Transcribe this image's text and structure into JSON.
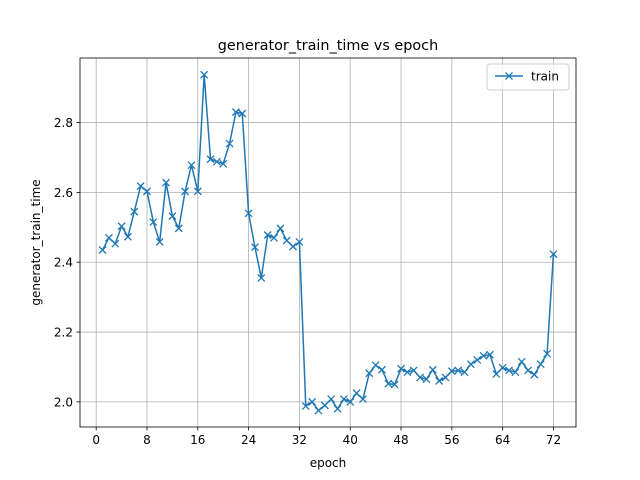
{
  "chart_data": {
    "type": "line",
    "title": "generator_train_time vs epoch",
    "xlabel": "epoch",
    "ylabel": "generator_train_time",
    "xlim": [
      -2.55,
      75.55
    ],
    "ylim": [
      1.928,
      2.985
    ],
    "xticks": [
      0,
      8,
      16,
      24,
      32,
      40,
      48,
      56,
      64,
      72
    ],
    "yticks": [
      2.0,
      2.2,
      2.4,
      2.6,
      2.8
    ],
    "ytick_labels": [
      "2.0",
      "2.2",
      "2.4",
      "2.6",
      "2.8"
    ],
    "grid": true,
    "legend_position": "top-right",
    "series": [
      {
        "name": "train",
        "color": "#1f77b4",
        "marker": "x",
        "x": [
          1,
          2,
          3,
          4,
          5,
          6,
          7,
          8,
          9,
          10,
          11,
          12,
          13,
          14,
          15,
          16,
          17,
          18,
          19,
          20,
          21,
          22,
          23,
          24,
          25,
          26,
          27,
          28,
          29,
          30,
          31,
          32,
          33,
          34,
          35,
          36,
          37,
          38,
          39,
          40,
          41,
          42,
          43,
          44,
          45,
          46,
          47,
          48,
          49,
          50,
          51,
          52,
          53,
          54,
          55,
          56,
          57,
          58,
          59,
          60,
          61,
          62,
          63,
          64,
          65,
          66,
          67,
          68,
          69,
          70,
          71,
          72
        ],
        "y": [
          2.435,
          2.47,
          2.453,
          2.503,
          2.473,
          2.545,
          2.618,
          2.603,
          2.515,
          2.458,
          2.628,
          2.532,
          2.497,
          2.603,
          2.678,
          2.603,
          2.937,
          2.695,
          2.688,
          2.682,
          2.74,
          2.83,
          2.826,
          2.54,
          2.443,
          2.355,
          2.478,
          2.47,
          2.497,
          2.462,
          2.445,
          2.458,
          1.988,
          2.0,
          1.975,
          1.99,
          2.008,
          1.98,
          2.008,
          2.0,
          2.025,
          2.008,
          2.082,
          2.105,
          2.092,
          2.052,
          2.05,
          2.095,
          2.085,
          2.09,
          2.07,
          2.065,
          2.092,
          2.06,
          2.07,
          2.088,
          2.09,
          2.085,
          2.108,
          2.12,
          2.132,
          2.135,
          2.08,
          2.098,
          2.09,
          2.085,
          2.115,
          2.09,
          2.078,
          2.108,
          2.138,
          2.423
        ]
      }
    ]
  }
}
